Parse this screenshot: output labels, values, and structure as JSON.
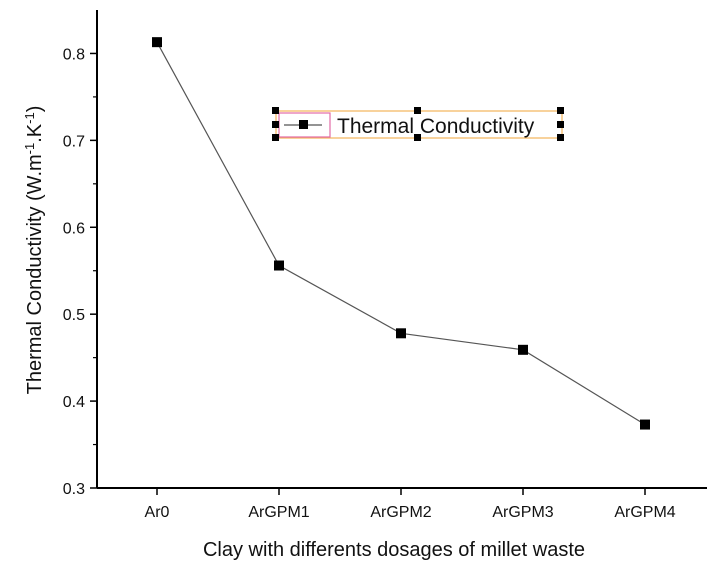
{
  "chart_data": {
    "type": "line",
    "title": "",
    "xlabel": "Clay with differents dosages of millet waste",
    "ylabel": "Thermal Conductivity (W.m-1.K-1)",
    "ylabel_parts": {
      "base": "Thermal Conductivity (W.m",
      "sup1": "-1",
      "mid": ".K",
      "sup2": "-1",
      "end": ")"
    },
    "categories": [
      "Ar0",
      "ArGPM1",
      "ArGPM2",
      "ArGPM3",
      "ArGPM4"
    ],
    "series": [
      {
        "name": "Thermal Conductivity",
        "values": [
          0.813,
          0.556,
          0.478,
          0.459,
          0.373
        ]
      }
    ],
    "ylim": [
      0.3,
      0.85
    ],
    "yticks": [
      "0.3",
      "0.4",
      "0.5",
      "0.6",
      "0.7",
      "0.8"
    ],
    "grid": false,
    "legend_position": "top-center",
    "colors": {
      "line": "#555555",
      "marker": "#000000",
      "axis": "#000000"
    }
  }
}
